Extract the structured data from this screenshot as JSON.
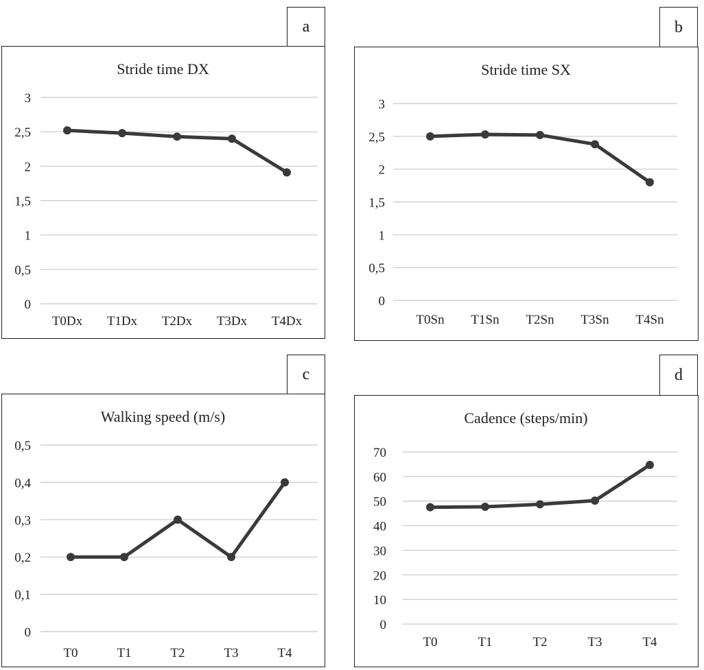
{
  "panels": [
    {
      "letter": "a"
    },
    {
      "letter": "b"
    },
    {
      "letter": "c"
    },
    {
      "letter": "d"
    }
  ],
  "chart_data": [
    {
      "type": "line",
      "title": "Stride time DX",
      "categories": [
        "T0Dx",
        "T1Dx",
        "T2Dx",
        "T3Dx",
        "T4Dx"
      ],
      "values": [
        2.52,
        2.48,
        2.43,
        2.4,
        1.91
      ],
      "yticks": [
        "0",
        "0,5",
        "1",
        "1,5",
        "2",
        "2,5",
        "3"
      ],
      "ylim": [
        0,
        3
      ],
      "grid": true,
      "color": "#3a3a3a"
    },
    {
      "type": "line",
      "title": "Stride time SX",
      "categories": [
        "T0Sn",
        "T1Sn",
        "T2Sn",
        "T3Sn",
        "T4Sn"
      ],
      "values": [
        2.5,
        2.53,
        2.52,
        2.38,
        1.8
      ],
      "yticks": [
        "0",
        "0,5",
        "1",
        "1,5",
        "2",
        "2,5",
        "3"
      ],
      "ylim": [
        0,
        3
      ],
      "grid": true,
      "color": "#3a3a3a"
    },
    {
      "type": "line",
      "title": "Walking speed (m/s)",
      "categories": [
        "T0",
        "T1",
        "T2",
        "T3",
        "T4"
      ],
      "values": [
        0.2,
        0.2,
        0.3,
        0.2,
        0.4
      ],
      "yticks": [
        "0",
        "0,1",
        "0,2",
        "0,3",
        "0,4",
        "0,5"
      ],
      "ylim": [
        0,
        0.5
      ],
      "grid": true,
      "color": "#3a3a3a"
    },
    {
      "type": "line",
      "title": "Cadence (steps/min)",
      "categories": [
        "T0",
        "T1",
        "T2",
        "T3",
        "T4"
      ],
      "values": [
        47.5,
        47.7,
        48.7,
        50.2,
        64.7
      ],
      "yticks": [
        "0",
        "10",
        "20",
        "30",
        "40",
        "50",
        "60",
        "70"
      ],
      "ylim": [
        0,
        70
      ],
      "grid": true,
      "color": "#3a3a3a"
    }
  ]
}
